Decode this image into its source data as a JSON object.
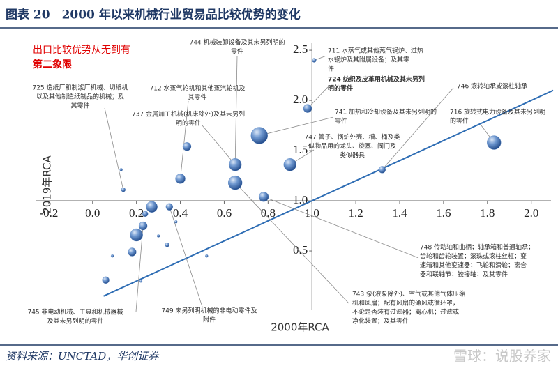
{
  "header": {
    "title": "图表 20　2000 年以来机械行业贸易品比较优势的变化"
  },
  "chart_data": {
    "type": "scatter",
    "xlabel": "2000年RCA",
    "ylabel": "2019年RCA",
    "x": [
      1.01,
      0.98,
      0.76,
      0.43,
      0.65,
      0.9,
      0.65,
      0.4,
      0.78,
      1.32,
      1.83,
      0.13,
      0.14,
      0.35,
      0.27,
      0.24,
      0.23,
      0.2,
      0.34,
      0.3,
      0.38,
      0.18,
      0.09,
      0.06,
      0.22,
      0.52
    ],
    "series": [
      {
        "color": "#4f7fc0",
        "values": [
          2.4,
          1.92,
          1.65,
          1.54,
          1.36,
          1.36,
          1.18,
          1.22,
          1.04,
          1.31,
          1.58,
          1.31,
          1.11,
          0.94,
          0.94,
          0.87,
          0.75,
          0.66,
          0.56,
          0.65,
          0.79,
          0.49,
          0.45,
          0.21,
          0.2,
          0.45
        ],
        "sizes": [
          3,
          6,
          12,
          6,
          9,
          9,
          10,
          7,
          7,
          5,
          10,
          2,
          3,
          5,
          8,
          4,
          6,
          9,
          3,
          2,
          2,
          6,
          2,
          5,
          2,
          2
        ]
      }
    ],
    "xlim": [
      -0.26,
      2.09
    ],
    "ylim": [
      -0.09,
      2.57
    ],
    "xticks": [
      -0.2,
      {
        "value": 0,
        "label": "0.0"
      },
      0.2,
      0.4,
      0.6,
      0.8,
      {
        "value": 1,
        "label": "1.0"
      },
      1.2,
      1.4,
      1.6,
      1.8,
      {
        "value": 2,
        "label": "2.0"
      }
    ],
    "yticks": [
      0.5,
      {
        "value": 1,
        "label": "1.0"
      },
      1.5,
      {
        "value": 2,
        "label": "2.0"
      },
      2.5
    ],
    "axes_cross": {
      "x": 1,
      "y": 1
    },
    "diagonal": {
      "x": [
        0.05,
        2.1
      ],
      "y": [
        0.05,
        2.1
      ],
      "color": "#2e6db4"
    },
    "quadrant_note": [
      "出口比较优势从无到有",
      "第二象限"
    ],
    "annotations": [
      {
        "lines": [
          "744 机械装卸设备及其未另列明的",
          "零件"
        ]
      },
      {
        "lines": [
          "711 水蒸气或其他蒸气锅炉、过热",
          "水锅炉及其附属设备；及其零",
          "件"
        ]
      },
      {
        "lines": [
          "724 纺织及皮革用机械及其未另列",
          "明的零件"
        ]
      },
      {
        "lines": [
          "725 造纸厂和制浆厂机械、切纸机",
          "以及其他制造纸制品的机械；及",
          "其零件"
        ]
      },
      {
        "lines": [
          "712 水蒸气轮机和其他蒸汽轮机及",
          "其零件"
        ]
      },
      {
        "lines": [
          "737 金属加工机械(机床除外)及其未另列",
          "明的零件"
        ]
      },
      {
        "lines": [
          "741 加热和冷却设备及其未另列明的",
          "零件"
        ]
      },
      {
        "lines": [
          "747 管子、锅炉外壳、槽、桶及类",
          "似物品用的龙头、旋塞、阀门及",
          "类似器具"
        ]
      },
      {
        "lines": [
          "746 滚转轴承或滚柱轴承"
        ]
      },
      {
        "lines": [
          "716 旋转式电力设备及其未另列明",
          "的零件"
        ]
      },
      {
        "lines": [
          "748 传动轴和曲柄；轴承箱和普通轴承；",
          "齿轮和齿轮装置；滚珠或滚柱丝杠；变",
          "速箱和其他变速器；飞轮和滑轮；离合",
          "器和联轴节；铰接轴；及其零件"
        ]
      },
      {
        "lines": [
          "743 泵(液泵除外)、空气或其他气体压缩",
          "机和风扇；配有风扇的通风或循环罩，",
          "不论是否装有过滤器；离心机；过滤或",
          "净化装置；及其零件"
        ]
      },
      {
        "lines": [
          "745 非电动机械、工具和机械器械",
          "及其未另列明的零件"
        ]
      },
      {
        "lines": [
          "749 未另列明机械的非电动零件及",
          "附件"
        ]
      }
    ]
  },
  "footer": {
    "source": "资料来源：UNCTAD，华创证券",
    "watermark": "雪球：说股养家"
  }
}
